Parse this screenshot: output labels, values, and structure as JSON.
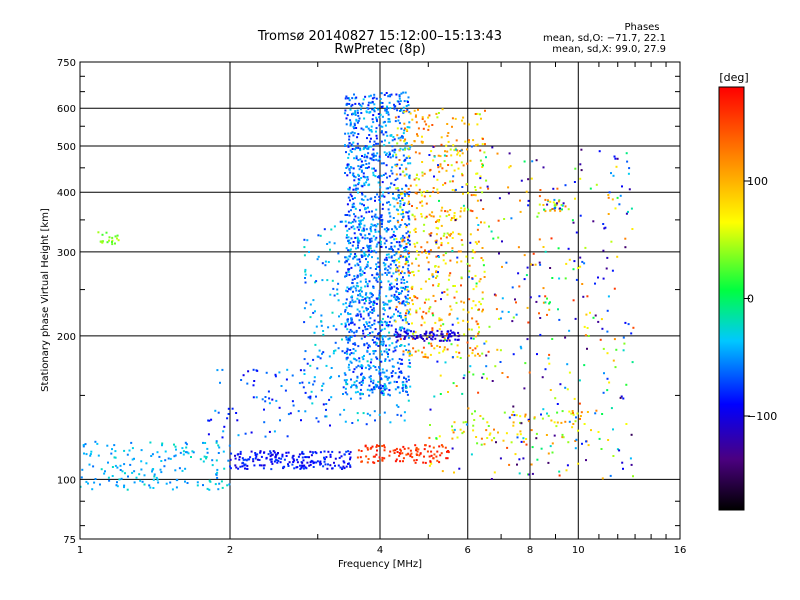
{
  "chart_data": {
    "type": "scatter",
    "title": "Tromsø 20140827 15:12:00–15:13:43",
    "subtitle": "RwPretec (8p)",
    "xlabel": "Frequency [MHz]",
    "ylabel": "Stationary phase Virtual Height [km]",
    "x_scale": "log",
    "y_scale": "log",
    "xlim": [
      1,
      16
    ],
    "ylim": [
      75,
      750
    ],
    "xticks": [
      1,
      2,
      4,
      6,
      8,
      10,
      16
    ],
    "xtick_labels": [
      "1",
      "2",
      "4",
      "6",
      "8",
      "10",
      "16"
    ],
    "yticks": [
      75,
      100,
      200,
      300,
      400,
      500,
      600,
      750
    ],
    "ytick_labels": [
      "75",
      "100",
      "200",
      "300",
      "400",
      "500",
      "600",
      "750"
    ],
    "grid": true,
    "stats": {
      "heading": "Phases",
      "line_o": "mean, sd,O: −71.7, 22.1",
      "line_x": "mean, sd,X:  99.0, 27.9"
    },
    "colorbar": {
      "label": "[deg]",
      "range": [
        -180,
        180
      ],
      "ticks": [
        100,
        0,
        -100
      ],
      "tick_labels": [
        "100",
        "0",
        "−100"
      ],
      "colormap": "rainbow"
    },
    "point_groups": [
      {
        "x_range": [
          1.0,
          2.0
        ],
        "y_range": [
          95,
          120
        ],
        "n": 170,
        "phase": [
          -60,
          -20
        ],
        "note": "lower trace rising"
      },
      {
        "x_range": [
          2.0,
          3.5
        ],
        "y_range": [
          105,
          115
        ],
        "n": 200,
        "phase": [
          -110,
          -70
        ]
      },
      {
        "x_range": [
          3.6,
          5.5
        ],
        "y_range": [
          108,
          118
        ],
        "n": 110,
        "phase": [
          140,
          175
        ]
      },
      {
        "x_range": [
          5.5,
          10.5
        ],
        "y_range": [
          118,
          140
        ],
        "n": 80,
        "phase": [
          30,
          130
        ]
      },
      {
        "x_range": [
          3.4,
          4.6
        ],
        "y_range": [
          150,
          650
        ],
        "n": 1300,
        "phase": [
          -90,
          -30
        ]
      },
      {
        "x_range": [
          2.8,
          4.6
        ],
        "y_range": [
          130,
          350
        ],
        "n": 260,
        "phase": [
          -80,
          -20
        ]
      },
      {
        "x_range": [
          4.3,
          6.5
        ],
        "y_range": [
          180,
          600
        ],
        "n": 500,
        "phase": [
          40,
          150
        ]
      },
      {
        "x_range": [
          5.0,
          13.0
        ],
        "y_range": [
          100,
          500
        ],
        "n": 450,
        "phase": [
          -150,
          160
        ]
      },
      {
        "x_range": [
          1.8,
          3.2
        ],
        "y_range": [
          120,
          170
        ],
        "n": 80,
        "phase": [
          -100,
          -40
        ]
      },
      {
        "x_range": [
          1.08,
          1.2
        ],
        "y_range": [
          310,
          330
        ],
        "n": 20,
        "phase": [
          20,
          50
        ]
      },
      {
        "x_range": [
          4.3,
          5.8
        ],
        "y_range": [
          195,
          205
        ],
        "n": 80,
        "phase": [
          -120,
          -90
        ]
      },
      {
        "x_range": [
          8.5,
          9.5
        ],
        "y_range": [
          365,
          385
        ],
        "n": 30,
        "phase": [
          -120,
          140
        ]
      }
    ]
  }
}
